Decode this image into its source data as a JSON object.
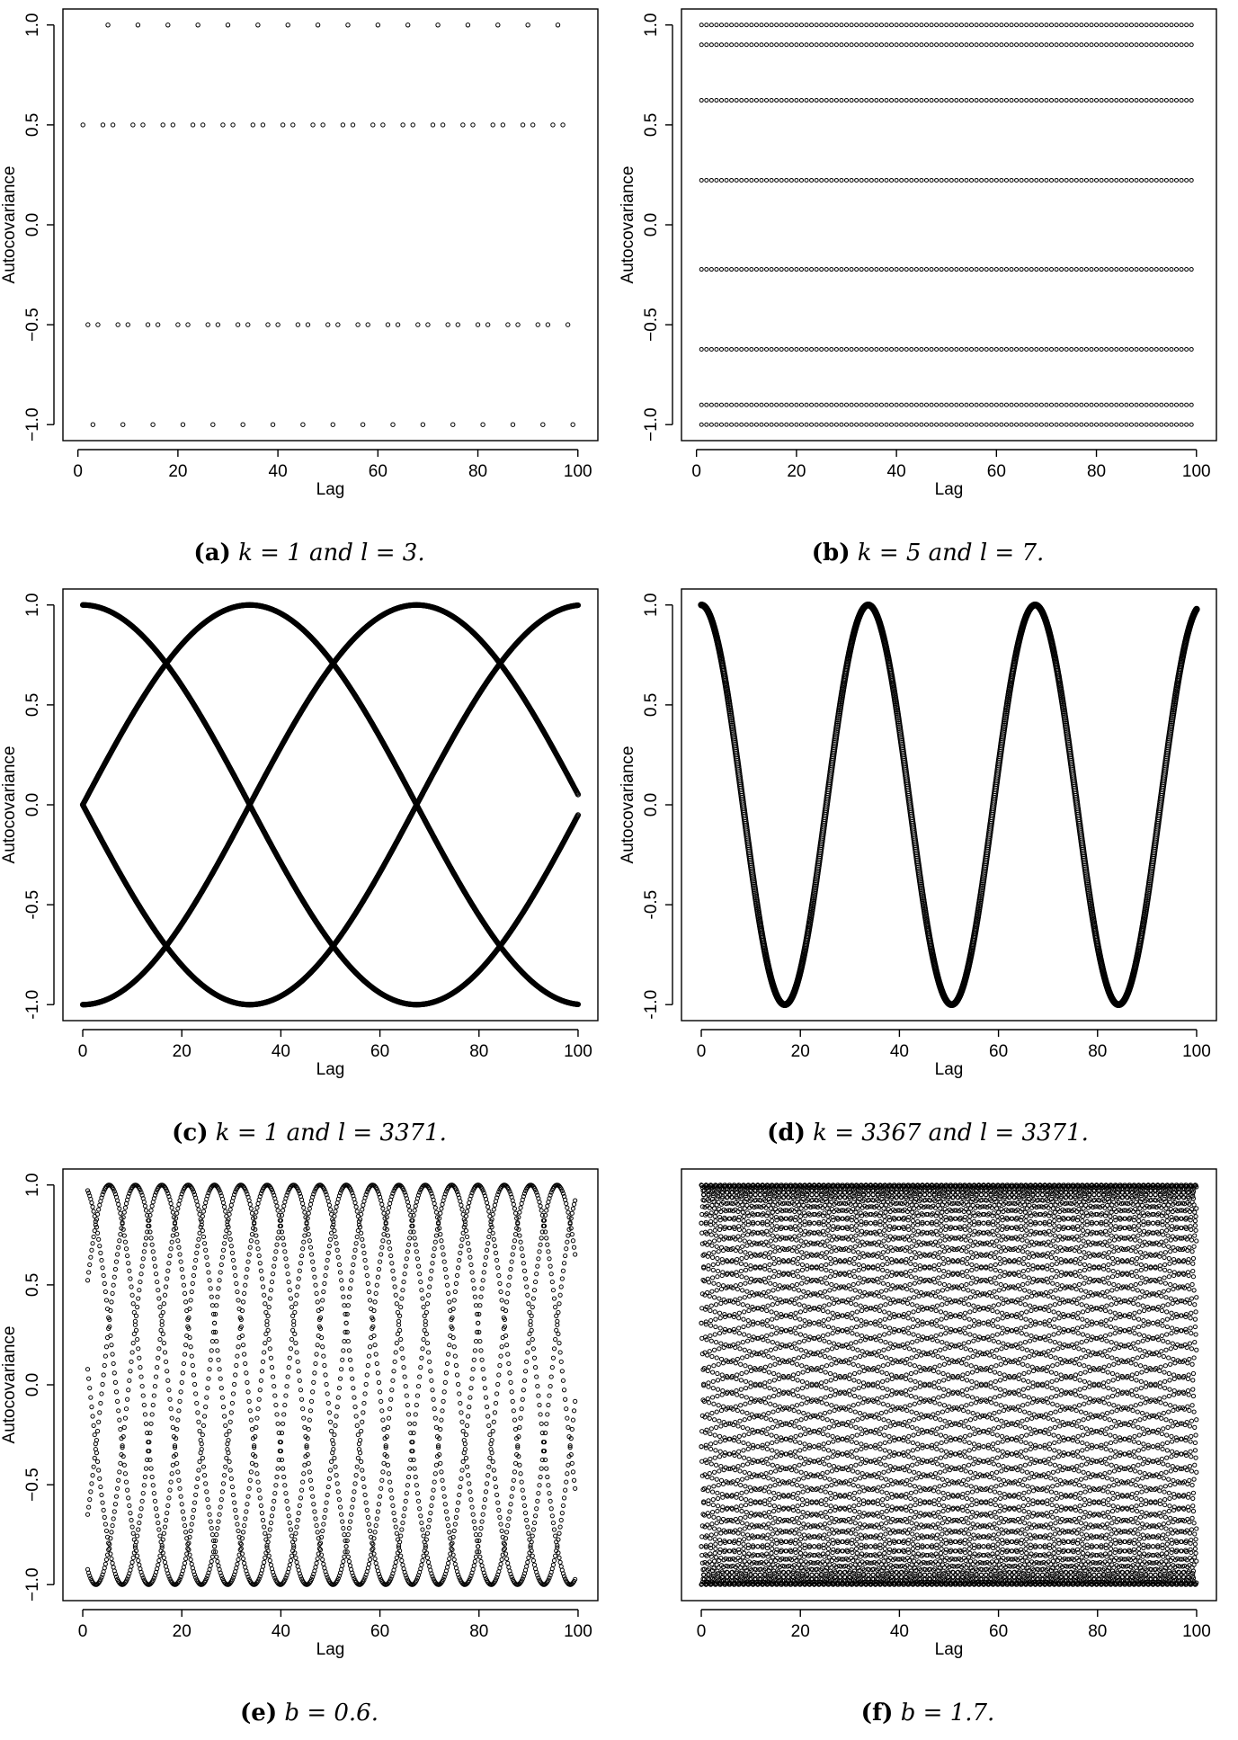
{
  "chart_data": [
    {
      "id": "a",
      "type": "scatter",
      "caption": {
        "tag": "(a)",
        "text": "k = 1 and l = 3."
      },
      "xlabel": "Lag",
      "ylabel": "Autocovariance",
      "xlim": [
        1,
        100
      ],
      "ylim": [
        -1,
        1
      ],
      "xticks": [
        0,
        20,
        40,
        60,
        80,
        100
      ],
      "yticks": [
        -1.0,
        -0.5,
        0.0,
        0.5,
        1.0
      ],
      "ytick_labels": [
        "−1.0",
        "−0.5",
        "0.0",
        "0.5",
        "1.0"
      ],
      "pattern": {
        "kind": "periodic-values",
        "period": 6,
        "values": [
          0.5,
          -0.5,
          -1,
          -0.5,
          0.5,
          1
        ],
        "start": 1,
        "end": 99
      },
      "marker_size": 2.2
    },
    {
      "id": "b",
      "type": "scatter",
      "caption": {
        "tag": "(b)",
        "text": "k = 5 and l = 7."
      },
      "xlabel": "Lag",
      "ylabel": "Autocovariance",
      "xlim": [
        1,
        100
      ],
      "ylim": [
        -1,
        1
      ],
      "xticks": [
        0,
        20,
        40,
        60,
        80,
        100
      ],
      "yticks": [
        -1.0,
        -0.5,
        0.0,
        0.5,
        1.0
      ],
      "ytick_labels": [
        "−1.0",
        "−0.5",
        "0.0",
        "0.5",
        "1.0"
      ],
      "pattern": {
        "kind": "levels",
        "levels": [
          1.0,
          0.901,
          0.623,
          0.223,
          -0.223,
          -0.623,
          -0.901,
          -1.0
        ],
        "step": 1,
        "start": 1,
        "end": 99
      },
      "marker_size": 2.0
    },
    {
      "id": "c",
      "type": "scatter",
      "caption": {
        "tag": "(c)",
        "text": "k = 1 and l = 3371."
      },
      "xlabel": "Lag",
      "ylabel": "Autocovariance",
      "xlim": [
        0,
        100
      ],
      "ylim": [
        -1,
        1
      ],
      "xticks": [
        0,
        20,
        40,
        60,
        80,
        100
      ],
      "yticks": [
        -1.0,
        -0.5,
        0.0,
        0.5,
        1.0
      ],
      "ytick_labels": [
        "-1.0",
        "-0.5",
        "0.0",
        "0.5",
        "1.0"
      ],
      "pattern": {
        "kind": "cos-family",
        "period": 134.8,
        "phases_deg": [
          0,
          90,
          180,
          270
        ],
        "step": 0.1,
        "start": 0,
        "end": 100
      },
      "marker_size": 2.6
    },
    {
      "id": "d",
      "type": "scatter",
      "caption": {
        "tag": "(d)",
        "text": "k = 3367 and l = 3371."
      },
      "xlabel": "Lag",
      "ylabel": "Autocovariance",
      "xlim": [
        0,
        100
      ],
      "ylim": [
        -1,
        1
      ],
      "xticks": [
        0,
        20,
        40,
        60,
        80,
        100
      ],
      "yticks": [
        -1.0,
        -0.5,
        0.0,
        0.5,
        1.0
      ],
      "ytick_labels": [
        "-1.0",
        "-0.5",
        "0.0",
        "0.5",
        "1.0"
      ],
      "pattern": {
        "kind": "cos-family",
        "period": 33.7,
        "phases_deg": [
          0
        ],
        "step": 0.05,
        "start": 0,
        "end": 100
      },
      "marker_size": 3.2
    },
    {
      "id": "e",
      "type": "scatter",
      "caption": {
        "tag": "(e)",
        "text": "b = 0.6."
      },
      "xlabel": "Lag",
      "ylabel": "Autocovariance",
      "xlim": [
        0,
        100
      ],
      "ylim": [
        -1,
        1
      ],
      "xticks": [
        0,
        20,
        40,
        60,
        80,
        100
      ],
      "yticks": [
        -1.0,
        -0.5,
        0.0,
        0.5,
        1.0
      ],
      "ytick_labels": [
        "−1.0",
        "−0.5",
        "0.0",
        "0.5",
        "1.0"
      ],
      "pattern": {
        "kind": "cos-family",
        "period": 26.6,
        "phases_deg": [
          0,
          72,
          144,
          216,
          288
        ],
        "step": 0.2,
        "start": 1,
        "end": 99.5
      },
      "marker_size": 2.1
    },
    {
      "id": "f",
      "type": "scatter",
      "caption": {
        "tag": "(f)",
        "text": "b = 1.7."
      },
      "xlabel": "Lag",
      "ylabel": "",
      "xlim": [
        0,
        100
      ],
      "ylim": [
        -1,
        1
      ],
      "xticks": [
        0,
        20,
        40,
        60,
        80,
        100
      ],
      "yticks": [],
      "ytick_labels": [],
      "pattern": {
        "kind": "cos-family",
        "period": 9.5,
        "phases_deg": [
          0,
          36,
          72,
          108,
          144,
          180,
          216,
          252,
          288,
          324
        ],
        "step": 0.12,
        "start": 0,
        "end": 100
      },
      "marker_size": 2.1
    }
  ]
}
